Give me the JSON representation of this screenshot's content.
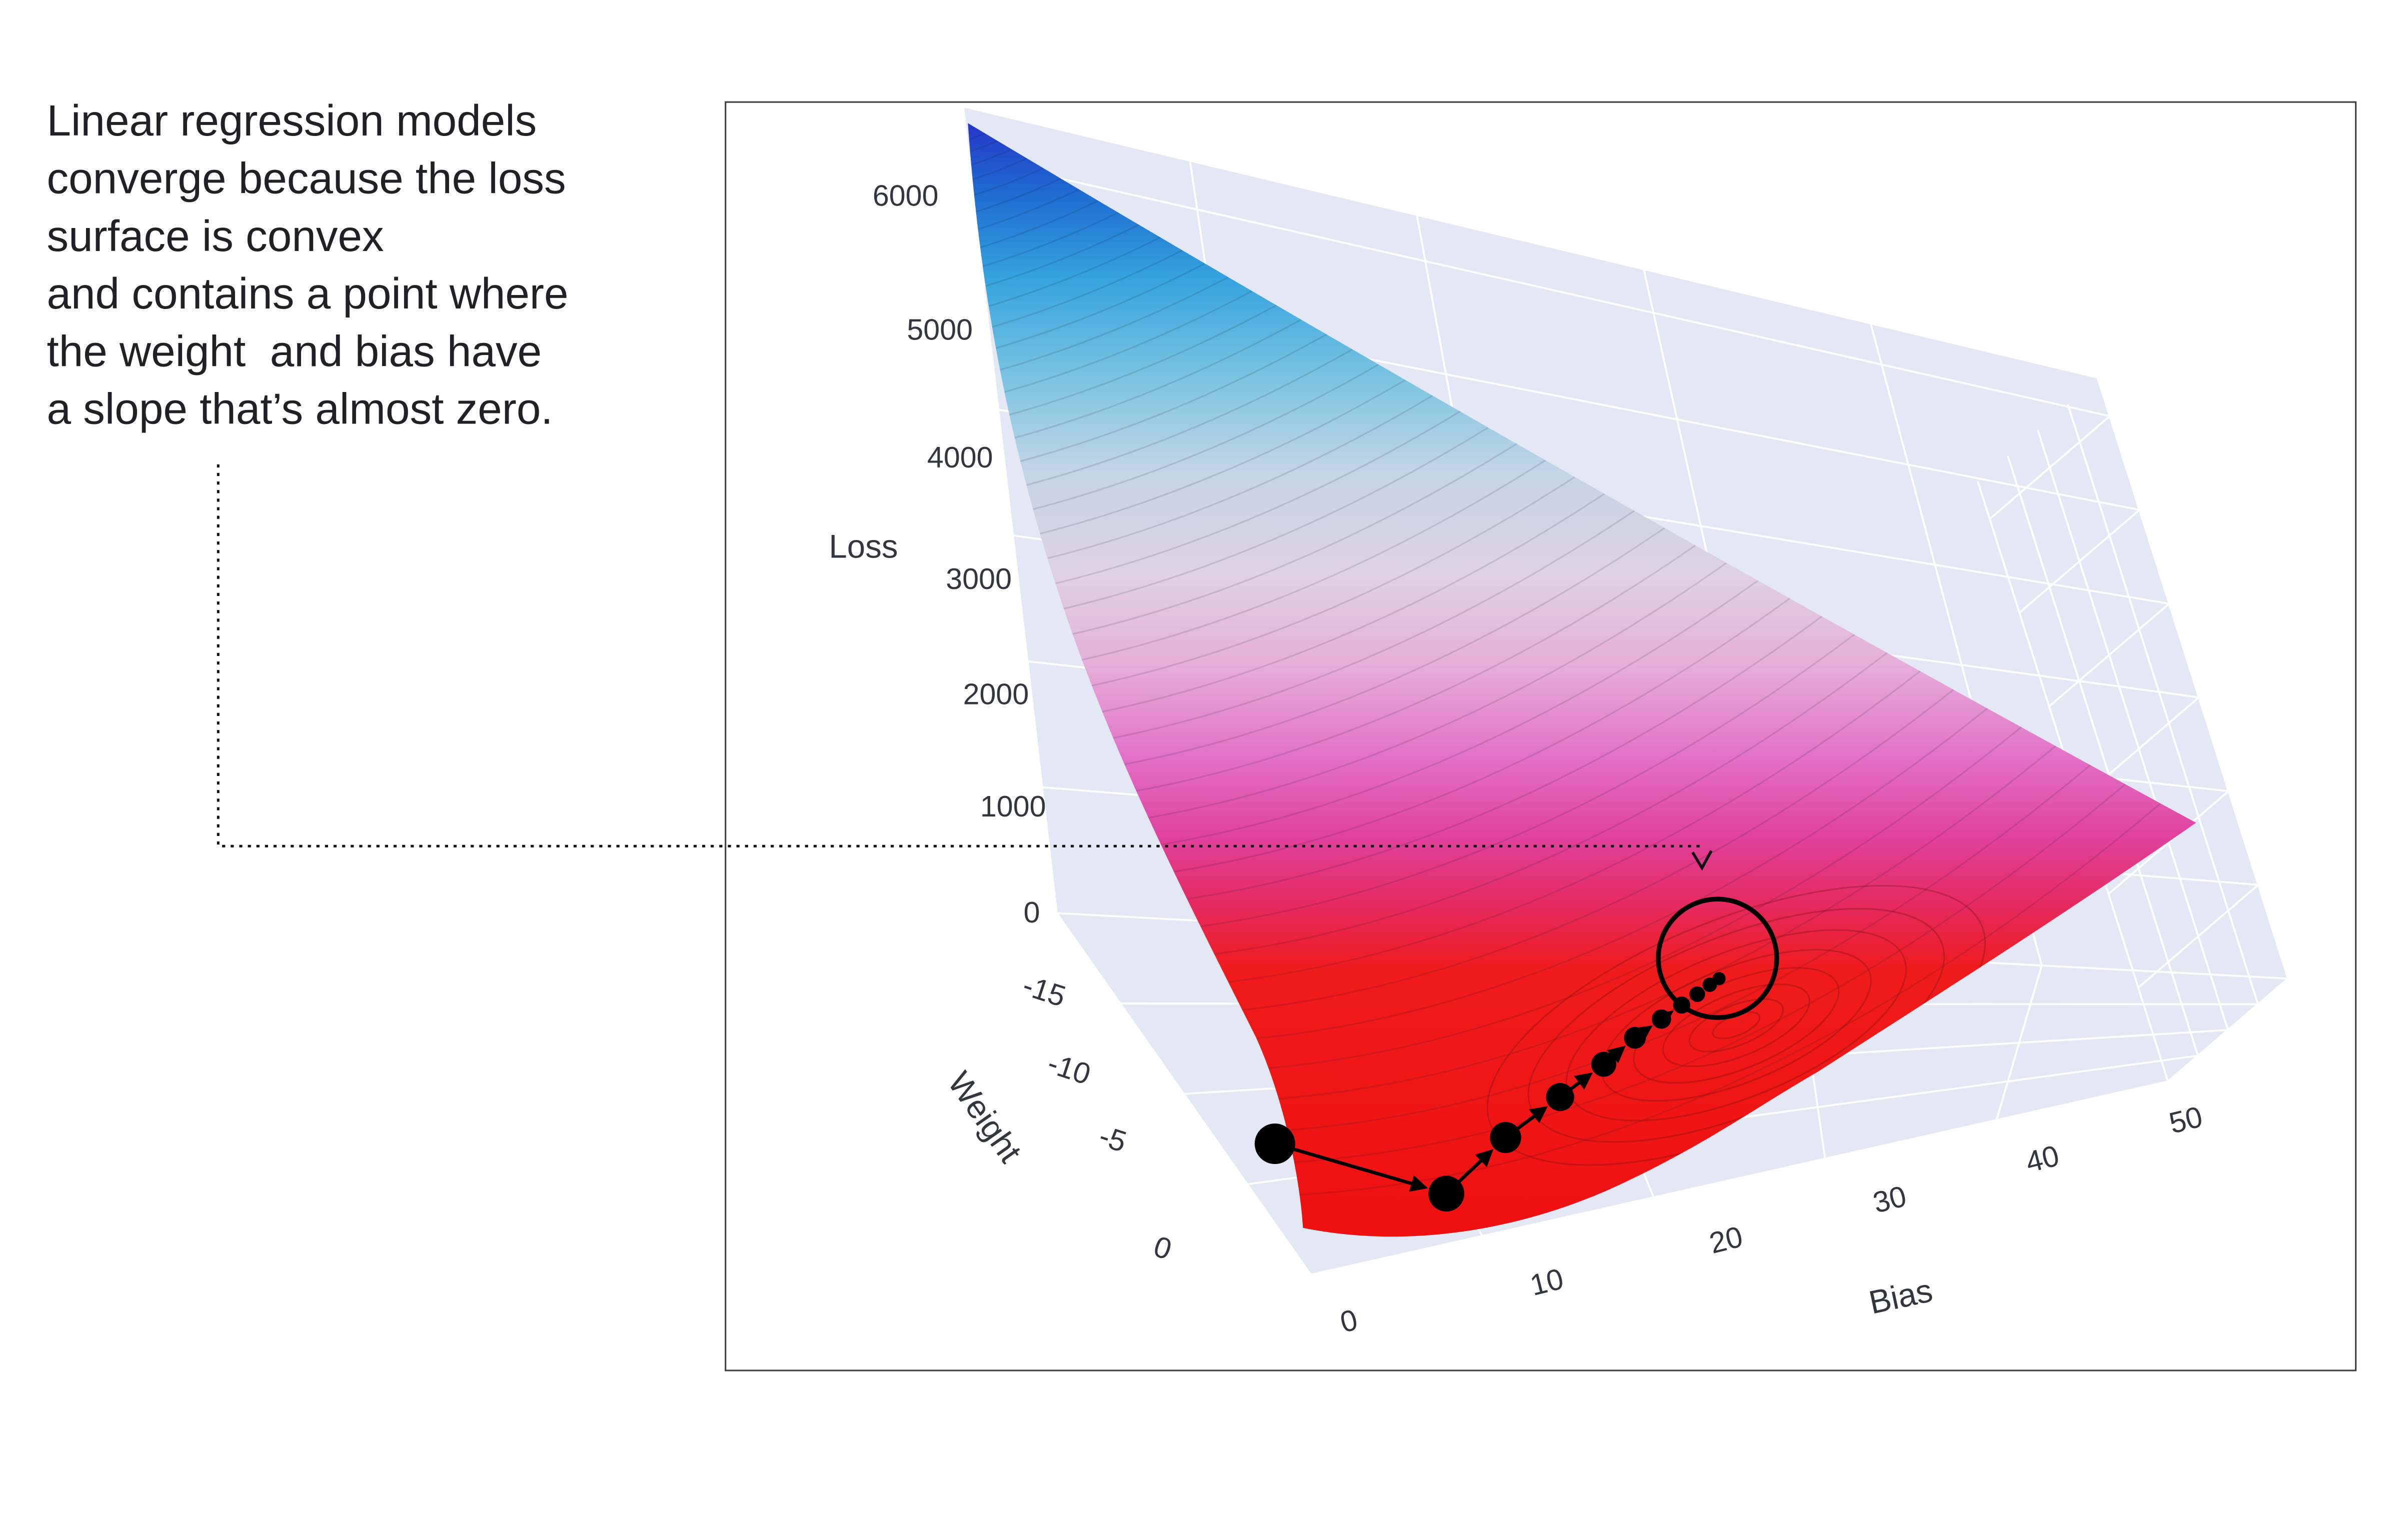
{
  "annotation": {
    "text": "Linear regression models\nconverge because the loss\nsurface is convex\nand contains a point where\nthe weight  and bias have\na slope that’s almost zero."
  },
  "chart_data": {
    "type": "surface",
    "title": "",
    "description": "Convex 3D loss surface for a linear regression model; a gradient descent path of black dots descends the surface and converges at the point where the slope of weight and bias is almost zero (circled minimum).",
    "axes": {
      "loss": {
        "label": "Loss",
        "ticks": [
          "6000",
          "5000",
          "4000",
          "3000",
          "2000",
          "1000",
          "0"
        ],
        "range": [
          0,
          6400
        ]
      },
      "weight": {
        "label": "Weight",
        "ticks": [
          "-15",
          "-10",
          "-5",
          "0"
        ],
        "range": [
          -20,
          0
        ]
      },
      "bias": {
        "label": "Bias",
        "ticks": [
          "0",
          "10",
          "20",
          "30",
          "40",
          "50"
        ],
        "range": [
          0,
          50
        ]
      }
    },
    "colorscale": [
      "#2634c8",
      "#1f6ed2",
      "#35a3dd",
      "#7cc4e2",
      "#c3d5e6",
      "#dfd2e2",
      "#e6aeda",
      "#e272c8",
      "#e0429f",
      "#e52a60",
      "#ef1b1b",
      "#ef0f0f"
    ],
    "gradient_descent": {
      "marker_color": "#000000",
      "steps_bias_weight_approx": [
        [
          1,
          -1.5
        ],
        [
          7,
          -3
        ],
        [
          10,
          -4.5
        ],
        [
          12.5,
          -6
        ],
        [
          14.5,
          -7
        ],
        [
          16,
          -7.8
        ],
        [
          17,
          -8.4
        ],
        [
          17.8,
          -8.8
        ],
        [
          18.4,
          -9.1
        ],
        [
          18.8,
          -9.3
        ],
        [
          19,
          -9.4
        ]
      ],
      "converges_to": {
        "bias_approx": 19,
        "weight_approx": -9.5,
        "slope": "almost zero"
      },
      "minimum_highlight": "black circle around convergence point"
    },
    "layout_hints": {
      "grid": "on",
      "wall_background": "#e4e7f4",
      "grid_color": "#ffffff",
      "plot_border_color": "#3c4043",
      "legend": "none"
    }
  },
  "connector": {
    "style": "dotted",
    "color": "#111111",
    "arrow": "points down at circled minimum"
  }
}
